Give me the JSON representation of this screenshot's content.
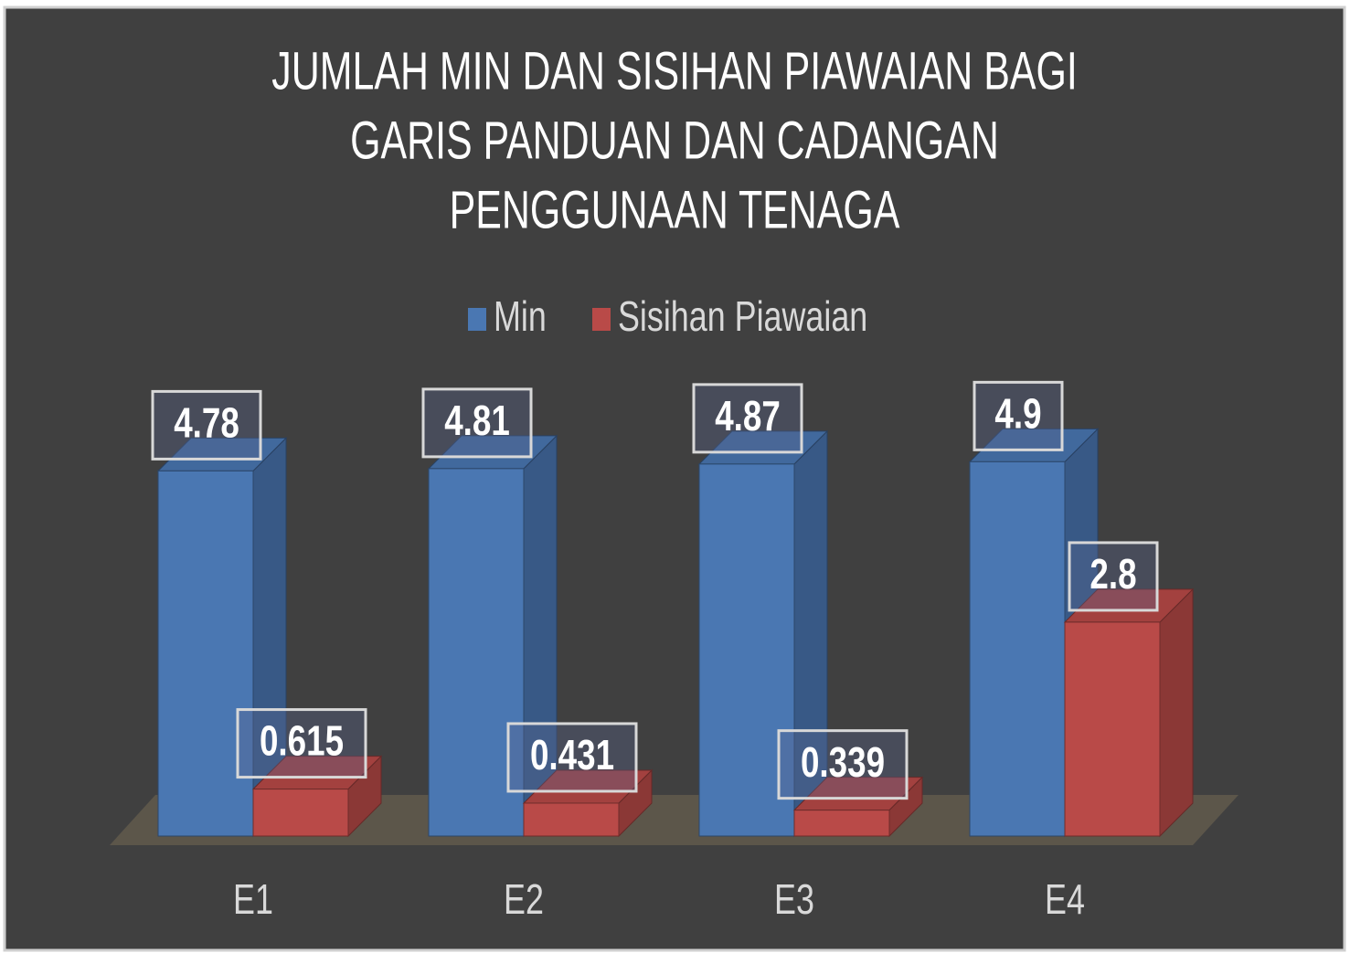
{
  "chart_data": {
    "type": "bar3d",
    "title": [
      "JUMLAH MIN DAN SISIHAN PIAWAIAN BAGI",
      "GARIS PANDUAN DAN CADANGAN",
      "PENGGUNAAN TENAGA"
    ],
    "categories": [
      "E1",
      "E2",
      "E3",
      "E4"
    ],
    "series": [
      {
        "name": "Min",
        "color": "#4a77b2",
        "values": [
          4.78,
          4.81,
          4.87,
          4.9
        ]
      },
      {
        "name": "Sisihan Piawaian",
        "color": "#b94a48",
        "values": [
          0.615,
          0.431,
          0.339,
          2.8
        ]
      }
    ],
    "ylim": [
      0,
      5
    ],
    "legend": "top"
  }
}
